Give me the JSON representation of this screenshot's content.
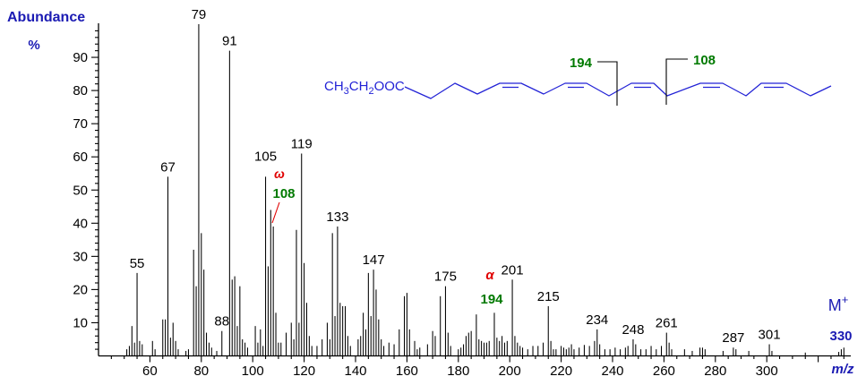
{
  "labels": {
    "abundance": "Abundance",
    "percent": "%",
    "mz": "m/z"
  },
  "molecular_ion": {
    "symbol": "M",
    "charge": "+",
    "mass": "330"
  },
  "annotations": {
    "omega_symbol": "ω",
    "omega_mass": "108",
    "alpha_symbol": "α",
    "alpha_mass": "194"
  },
  "structure": {
    "formula": {
      "p1": "CH",
      "s1": "3",
      "p2": "CH",
      "s2": "2",
      "p3": "OOC"
    },
    "alpha_fragment_mass": "194",
    "omega_fragment_mass": "108",
    "double_bond_count": 5
  },
  "colors": {
    "ui_blue": "#1b1bb3",
    "chain_blue": "#2323d6",
    "label_green": "#007a00",
    "annotation_red": "#e00000",
    "peak_black": "#000000",
    "background": "#ffffff"
  },
  "chart_data": {
    "type": "bar",
    "subtype": "mass_spectrum",
    "title": "",
    "xlabel": "m/z",
    "ylabel": "Abundance %",
    "x_range": [
      40,
      332
    ],
    "y_range": [
      0,
      100
    ],
    "grid": false,
    "x_labeled_ticks": [
      60,
      80,
      100,
      120,
      140,
      160,
      180,
      200,
      220,
      240,
      260,
      280,
      300
    ],
    "x_major_tick_step": 20,
    "x_minor_tick_step": 5,
    "y_labeled_ticks": [
      10,
      20,
      30,
      40,
      50,
      60,
      70,
      80,
      90
    ],
    "y_minor_tick_step": 2,
    "molecular_ion_mz": 330,
    "peaks": [
      [
        51,
        2
      ],
      [
        52,
        3
      ],
      [
        53,
        9
      ],
      [
        54,
        4
      ],
      [
        55,
        25
      ],
      [
        56,
        4.5
      ],
      [
        57,
        3.5
      ],
      [
        61,
        4.5
      ],
      [
        62,
        2
      ],
      [
        65,
        11
      ],
      [
        66,
        11
      ],
      [
        67,
        54
      ],
      [
        68,
        5.5
      ],
      [
        69,
        10
      ],
      [
        70,
        4.5
      ],
      [
        71,
        2
      ],
      [
        74,
        1.5
      ],
      [
        75,
        2
      ],
      [
        77,
        32
      ],
      [
        78,
        21
      ],
      [
        79,
        100
      ],
      [
        80,
        37
      ],
      [
        81,
        26
      ],
      [
        82,
        7
      ],
      [
        83,
        4
      ],
      [
        84,
        2.5
      ],
      [
        86,
        1.5
      ],
      [
        88,
        7.5
      ],
      [
        91,
        92
      ],
      [
        92,
        23
      ],
      [
        93,
        24
      ],
      [
        94,
        9
      ],
      [
        95,
        21
      ],
      [
        96,
        5
      ],
      [
        97,
        4
      ],
      [
        98,
        2.5
      ],
      [
        101,
        9
      ],
      [
        102,
        4
      ],
      [
        103,
        8
      ],
      [
        104,
        3
      ],
      [
        105,
        54
      ],
      [
        106,
        27
      ],
      [
        107,
        44
      ],
      [
        108,
        39
      ],
      [
        109,
        13
      ],
      [
        110,
        4
      ],
      [
        111,
        4
      ],
      [
        113,
        7
      ],
      [
        115,
        10
      ],
      [
        116,
        5
      ],
      [
        117,
        38
      ],
      [
        118,
        10
      ],
      [
        119,
        61
      ],
      [
        120,
        28
      ],
      [
        121,
        16
      ],
      [
        122,
        6
      ],
      [
        123,
        3
      ],
      [
        125,
        3
      ],
      [
        127,
        5
      ],
      [
        129,
        10
      ],
      [
        130,
        5
      ],
      [
        131,
        37
      ],
      [
        132,
        12
      ],
      [
        133,
        39
      ],
      [
        134,
        16
      ],
      [
        135,
        15
      ],
      [
        136,
        15
      ],
      [
        137,
        6
      ],
      [
        138,
        3
      ],
      [
        141,
        5
      ],
      [
        142,
        6
      ],
      [
        143,
        13
      ],
      [
        144,
        8
      ],
      [
        145,
        25
      ],
      [
        146,
        12
      ],
      [
        147,
        26
      ],
      [
        148,
        20
      ],
      [
        149,
        11
      ],
      [
        150,
        5
      ],
      [
        151,
        3
      ],
      [
        153,
        4
      ],
      [
        155,
        3.5
      ],
      [
        157,
        8
      ],
      [
        159,
        18
      ],
      [
        160,
        19
      ],
      [
        161,
        8
      ],
      [
        163,
        4.5
      ],
      [
        164,
        2
      ],
      [
        165,
        2.5
      ],
      [
        168,
        3.5
      ],
      [
        170,
        7.5
      ],
      [
        171,
        6
      ],
      [
        173,
        18
      ],
      [
        175,
        21
      ],
      [
        176,
        7
      ],
      [
        177,
        3
      ],
      [
        180,
        2
      ],
      [
        181,
        2.5
      ],
      [
        182,
        3.5
      ],
      [
        183,
        6
      ],
      [
        184,
        7
      ],
      [
        185,
        7.5
      ],
      [
        187,
        12.5
      ],
      [
        188,
        5
      ],
      [
        189,
        4.5
      ],
      [
        190,
        4
      ],
      [
        191,
        4
      ],
      [
        192,
        4.5
      ],
      [
        194,
        13
      ],
      [
        195,
        5.5
      ],
      [
        196,
        4.5
      ],
      [
        197,
        6
      ],
      [
        198,
        4
      ],
      [
        199,
        4.5
      ],
      [
        201,
        23
      ],
      [
        202,
        6
      ],
      [
        203,
        4
      ],
      [
        204,
        3
      ],
      [
        205,
        2.5
      ],
      [
        207,
        2
      ],
      [
        209,
        3
      ],
      [
        211,
        3
      ],
      [
        213,
        4
      ],
      [
        215,
        15
      ],
      [
        216,
        4.5
      ],
      [
        217,
        2
      ],
      [
        218,
        2
      ],
      [
        220,
        3
      ],
      [
        221,
        2.5
      ],
      [
        222,
        2
      ],
      [
        223,
        2.5
      ],
      [
        224,
        3.5
      ],
      [
        225,
        2
      ],
      [
        227,
        2.5
      ],
      [
        229,
        3.3
      ],
      [
        231,
        3
      ],
      [
        233,
        4.5
      ],
      [
        234,
        8
      ],
      [
        235,
        3.5
      ],
      [
        237,
        2
      ],
      [
        239,
        2
      ],
      [
        241,
        2.5
      ],
      [
        243,
        2
      ],
      [
        245,
        2.5
      ],
      [
        246,
        3
      ],
      [
        248,
        5
      ],
      [
        249,
        3.5
      ],
      [
        251,
        2
      ],
      [
        253,
        2
      ],
      [
        255,
        3
      ],
      [
        257,
        2
      ],
      [
        259,
        3
      ],
      [
        261,
        7
      ],
      [
        262,
        4
      ],
      [
        263,
        2
      ],
      [
        268,
        2
      ],
      [
        271,
        1.5
      ],
      [
        274,
        2.5
      ],
      [
        275,
        2.5
      ],
      [
        276,
        2
      ],
      [
        283,
        1.5
      ],
      [
        287,
        2.5
      ],
      [
        288,
        2
      ],
      [
        293,
        1.5
      ],
      [
        301,
        3.5
      ],
      [
        302,
        1.5
      ],
      [
        315,
        1
      ],
      [
        328,
        1.2
      ],
      [
        329,
        2
      ],
      [
        330,
        2.5
      ]
    ],
    "labeled_peaks": [
      {
        "mz": 55,
        "label": "55"
      },
      {
        "mz": 67,
        "label": "67"
      },
      {
        "mz": 79,
        "label": "79"
      },
      {
        "mz": 88,
        "label": "88"
      },
      {
        "mz": 91,
        "label": "91"
      },
      {
        "mz": 105,
        "label": "105",
        "dy": -12
      },
      {
        "mz": 119,
        "label": "119"
      },
      {
        "mz": 133,
        "label": "133"
      },
      {
        "mz": 147,
        "label": "147"
      },
      {
        "mz": 175,
        "label": "175"
      },
      {
        "mz": 201,
        "label": "201"
      },
      {
        "mz": 215,
        "label": "215"
      },
      {
        "mz": 234,
        "label": "234"
      },
      {
        "mz": 248,
        "label": "248"
      },
      {
        "mz": 261,
        "label": "261"
      },
      {
        "mz": 287,
        "label": "287"
      },
      {
        "mz": 301,
        "label": "301"
      }
    ]
  }
}
